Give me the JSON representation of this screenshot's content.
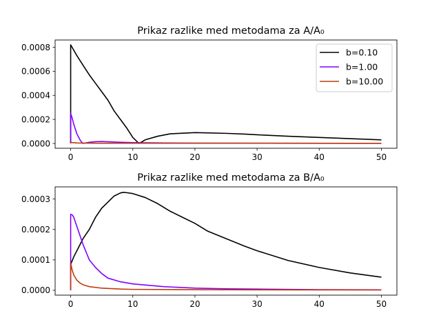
{
  "chart_data": [
    {
      "type": "line",
      "title": "Prikaz razlike med metodama za  A/A₀",
      "xlabel": "",
      "ylabel": "",
      "xlim": [
        -2.5,
        52.5
      ],
      "ylim": [
        -4e-05,
        0.00086
      ],
      "xticks": [
        0,
        10,
        20,
        30,
        40,
        50
      ],
      "xtick_labels": [
        "0",
        "10",
        "20",
        "30",
        "40",
        "50"
      ],
      "yticks": [
        0,
        0.0002,
        0.0004,
        0.0006,
        0.0008
      ],
      "ytick_labels": [
        "0.0000",
        "0.0002",
        "0.0004",
        "0.0006",
        "0.0008"
      ],
      "grid": false,
      "legend": "top-right",
      "series": [
        {
          "name": "b=0.10",
          "color": "#000000",
          "points": [
            [
              0,
              0
            ],
            [
              0,
              0.00082
            ],
            [
              1,
              0.00073
            ],
            [
              2,
              0.00065
            ],
            [
              3,
              0.00057
            ],
            [
              4,
              0.0005
            ],
            [
              5,
              0.00043
            ],
            [
              6,
              0.00036
            ],
            [
              7,
              0.00027
            ],
            [
              8,
              0.0002
            ],
            [
              9,
              0.00013
            ],
            [
              10,
              5e-05
            ],
            [
              11,
              0
            ],
            [
              12,
              3e-05
            ],
            [
              14,
              6e-05
            ],
            [
              16,
              8e-05
            ],
            [
              18,
              8.5e-05
            ],
            [
              20,
              9e-05
            ],
            [
              22,
              8.8e-05
            ],
            [
              25,
              8.4e-05
            ],
            [
              28,
              7.8e-05
            ],
            [
              30,
              7.2e-05
            ],
            [
              35,
              6e-05
            ],
            [
              40,
              5e-05
            ],
            [
              45,
              4e-05
            ],
            [
              50,
              3e-05
            ]
          ]
        },
        {
          "name": "b=1.00",
          "color": "#7f00ff",
          "points": [
            [
              0,
              0
            ],
            [
              0,
              0.00025
            ],
            [
              0.25,
              0.00021
            ],
            [
              0.5,
              0.00016
            ],
            [
              0.75,
              0.00012
            ],
            [
              1,
              8e-05
            ],
            [
              1.25,
              5.5e-05
            ],
            [
              1.5,
              3e-05
            ],
            [
              1.75,
              1.2e-05
            ],
            [
              2,
              0
            ],
            [
              2.5,
              5e-06
            ],
            [
              3,
              1e-05
            ],
            [
              4,
              1.5e-05
            ],
            [
              5,
              1.6e-05
            ],
            [
              6,
              1.4e-05
            ],
            [
              8,
              1e-05
            ],
            [
              10,
              7e-06
            ],
            [
              15,
              4e-06
            ],
            [
              20,
              3e-06
            ],
            [
              30,
              2e-06
            ],
            [
              50,
              1e-06
            ]
          ]
        },
        {
          "name": "b=10.00",
          "color": "#c0390b",
          "points": [
            [
              0,
              0
            ],
            [
              0,
              8e-06
            ],
            [
              0.5,
              6e-06
            ],
            [
              1,
              4e-06
            ],
            [
              2,
              3e-06
            ],
            [
              5,
              2e-06
            ],
            [
              10,
              2e-06
            ],
            [
              20,
              2e-06
            ],
            [
              30,
              2e-06
            ],
            [
              50,
              1e-06
            ]
          ]
        }
      ]
    },
    {
      "type": "line",
      "title": "Prikaz razlike med metodama za  B/A₀",
      "xlabel": "",
      "ylabel": "",
      "xlim": [
        -2.5,
        52.5
      ],
      "ylim": [
        -1.6e-05,
        0.00034
      ],
      "xticks": [
        0,
        10,
        20,
        30,
        40,
        50
      ],
      "xtick_labels": [
        "0",
        "10",
        "20",
        "30",
        "40",
        "50"
      ],
      "yticks": [
        0,
        0.0001,
        0.0002,
        0.0003
      ],
      "ytick_labels": [
        "0.0000",
        "0.0001",
        "0.0002",
        "0.0003"
      ],
      "grid": false,
      "series": [
        {
          "name": "b=0.10",
          "color": "#000000",
          "points": [
            [
              0,
              8.5e-05
            ],
            [
              0.5,
              0.00011
            ],
            [
              1,
              0.00013
            ],
            [
              2,
              0.00017
            ],
            [
              3,
              0.0002
            ],
            [
              4,
              0.00024
            ],
            [
              5,
              0.00027
            ],
            [
              6,
              0.00029
            ],
            [
              7,
              0.00031
            ],
            [
              8,
              0.00032
            ],
            [
              8.5,
              0.000322
            ],
            [
              9,
              0.000321
            ],
            [
              10,
              0.000318
            ],
            [
              12,
              0.000305
            ],
            [
              14,
              0.000285
            ],
            [
              16,
              0.00026
            ],
            [
              18,
              0.00024
            ],
            [
              20,
              0.00022
            ],
            [
              22,
              0.000195
            ],
            [
              25,
              0.00017
            ],
            [
              28,
              0.000145
            ],
            [
              30,
              0.00013
            ],
            [
              35,
              9.8e-05
            ],
            [
              40,
              7.5e-05
            ],
            [
              45,
              5.7e-05
            ],
            [
              50,
              4.3e-05
            ]
          ]
        },
        {
          "name": "b=1.00",
          "color": "#7f00ff",
          "points": [
            [
              0,
              0
            ],
            [
              0,
              0.00025
            ],
            [
              0.25,
              0.000248
            ],
            [
              0.5,
              0.00024
            ],
            [
              1,
              0.00021
            ],
            [
              1.5,
              0.00018
            ],
            [
              2,
              0.00015
            ],
            [
              2.5,
              0.000125
            ],
            [
              3,
              0.0001
            ],
            [
              4,
              7.5e-05
            ],
            [
              5,
              5.5e-05
            ],
            [
              6,
              4e-05
            ],
            [
              8,
              2.8e-05
            ],
            [
              10,
              2.1e-05
            ],
            [
              15,
              1.2e-05
            ],
            [
              20,
              7e-06
            ],
            [
              25,
              5e-06
            ],
            [
              30,
              4e-06
            ],
            [
              40,
              2e-06
            ],
            [
              50,
              1.5e-06
            ]
          ]
        },
        {
          "name": "b=10.00",
          "color": "#c0390b",
          "points": [
            [
              0,
              0
            ],
            [
              0,
              9e-05
            ],
            [
              0.2,
              7e-05
            ],
            [
              0.5,
              5e-05
            ],
            [
              1,
              3.3e-05
            ],
            [
              1.5,
              2.4e-05
            ],
            [
              2,
              1.8e-05
            ],
            [
              3,
              1.2e-05
            ],
            [
              5,
              7e-06
            ],
            [
              8,
              4e-06
            ],
            [
              10,
              3e-06
            ],
            [
              20,
              2e-06
            ],
            [
              30,
              1.5e-06
            ],
            [
              50,
              1e-06
            ]
          ]
        }
      ]
    }
  ]
}
